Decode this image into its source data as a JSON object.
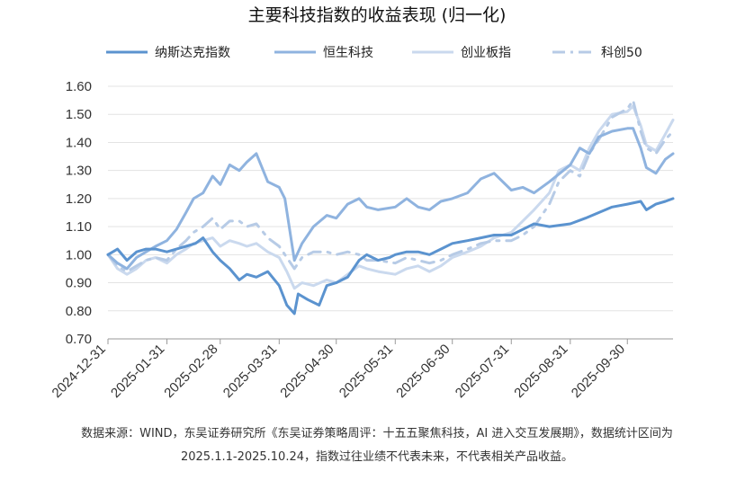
{
  "chart_data": {
    "type": "line",
    "title": "主要科技指数的收益表现 (归一化)",
    "xlabel": "",
    "ylabel": "",
    "ylim": [
      0.7,
      1.6
    ],
    "yticks": [
      "1.60",
      "1.50",
      "1.40",
      "1.30",
      "1.20",
      "1.10",
      "1.00",
      "0.90",
      "0.80",
      "0.70"
    ],
    "xticks": [
      "2024-12-31",
      "2025-01-31",
      "2025-02-28",
      "2025-03-31",
      "2025-04-30",
      "2025-05-31",
      "2025-06-30",
      "2025-07-31",
      "2025-08-31",
      "2025-09-30"
    ],
    "grid": "horizontal",
    "legend_position": "top",
    "series": [
      {
        "name": "纳斯达克指数",
        "color": "#5b93cf",
        "style": "solid",
        "values": [
          [
            "2024-12-31",
            1.0
          ],
          [
            "2025-01-05",
            1.02
          ],
          [
            "2025-01-10",
            0.98
          ],
          [
            "2025-01-15",
            1.01
          ],
          [
            "2025-01-20",
            1.02
          ],
          [
            "2025-01-25",
            1.02
          ],
          [
            "2025-01-31",
            1.01
          ],
          [
            "2025-02-05",
            1.02
          ],
          [
            "2025-02-10",
            1.03
          ],
          [
            "2025-02-15",
            1.04
          ],
          [
            "2025-02-19",
            1.06
          ],
          [
            "2025-02-24",
            1.01
          ],
          [
            "2025-02-28",
            0.98
          ],
          [
            "2025-03-05",
            0.95
          ],
          [
            "2025-03-10",
            0.91
          ],
          [
            "2025-03-14",
            0.93
          ],
          [
            "2025-03-19",
            0.92
          ],
          [
            "2025-03-25",
            0.94
          ],
          [
            "2025-03-31",
            0.89
          ],
          [
            "2025-04-04",
            0.82
          ],
          [
            "2025-04-08",
            0.79
          ],
          [
            "2025-04-10",
            0.86
          ],
          [
            "2025-04-15",
            0.84
          ],
          [
            "2025-04-21",
            0.82
          ],
          [
            "2025-04-25",
            0.89
          ],
          [
            "2025-04-30",
            0.9
          ],
          [
            "2025-05-06",
            0.92
          ],
          [
            "2025-05-12",
            0.98
          ],
          [
            "2025-05-16",
            1.0
          ],
          [
            "2025-05-22",
            0.98
          ],
          [
            "2025-05-28",
            0.99
          ],
          [
            "2025-05-31",
            1.0
          ],
          [
            "2025-06-06",
            1.01
          ],
          [
            "2025-06-12",
            1.01
          ],
          [
            "2025-06-18",
            1.0
          ],
          [
            "2025-06-24",
            1.02
          ],
          [
            "2025-06-30",
            1.04
          ],
          [
            "2025-07-08",
            1.05
          ],
          [
            "2025-07-15",
            1.06
          ],
          [
            "2025-07-22",
            1.07
          ],
          [
            "2025-07-31",
            1.07
          ],
          [
            "2025-08-06",
            1.09
          ],
          [
            "2025-08-12",
            1.11
          ],
          [
            "2025-08-20",
            1.1
          ],
          [
            "2025-08-31",
            1.11
          ],
          [
            "2025-09-08",
            1.13
          ],
          [
            "2025-09-15",
            1.15
          ],
          [
            "2025-09-22",
            1.17
          ],
          [
            "2025-09-30",
            1.18
          ],
          [
            "2025-10-07",
            1.19
          ],
          [
            "2025-10-10",
            1.16
          ],
          [
            "2025-10-15",
            1.18
          ],
          [
            "2025-10-20",
            1.19
          ],
          [
            "2025-10-24",
            1.2
          ]
        ]
      },
      {
        "name": "恒生科技",
        "color": "#8fb3df",
        "style": "solid",
        "values": [
          [
            "2024-12-31",
            1.0
          ],
          [
            "2025-01-05",
            0.97
          ],
          [
            "2025-01-10",
            0.95
          ],
          [
            "2025-01-15",
            0.99
          ],
          [
            "2025-01-20",
            1.01
          ],
          [
            "2025-01-25",
            1.03
          ],
          [
            "2025-01-31",
            1.05
          ],
          [
            "2025-02-05",
            1.09
          ],
          [
            "2025-02-10",
            1.15
          ],
          [
            "2025-02-14",
            1.2
          ],
          [
            "2025-02-19",
            1.22
          ],
          [
            "2025-02-24",
            1.28
          ],
          [
            "2025-02-28",
            1.25
          ],
          [
            "2025-03-05",
            1.32
          ],
          [
            "2025-03-10",
            1.3
          ],
          [
            "2025-03-14",
            1.33
          ],
          [
            "2025-03-19",
            1.36
          ],
          [
            "2025-03-25",
            1.26
          ],
          [
            "2025-03-31",
            1.24
          ],
          [
            "2025-04-03",
            1.2
          ],
          [
            "2025-04-08",
            0.98
          ],
          [
            "2025-04-12",
            1.04
          ],
          [
            "2025-04-18",
            1.1
          ],
          [
            "2025-04-25",
            1.14
          ],
          [
            "2025-04-30",
            1.13
          ],
          [
            "2025-05-06",
            1.18
          ],
          [
            "2025-05-12",
            1.2
          ],
          [
            "2025-05-16",
            1.17
          ],
          [
            "2025-05-22",
            1.16
          ],
          [
            "2025-05-31",
            1.17
          ],
          [
            "2025-06-06",
            1.2
          ],
          [
            "2025-06-12",
            1.17
          ],
          [
            "2025-06-18",
            1.16
          ],
          [
            "2025-06-24",
            1.19
          ],
          [
            "2025-06-30",
            1.2
          ],
          [
            "2025-07-08",
            1.22
          ],
          [
            "2025-07-15",
            1.27
          ],
          [
            "2025-07-22",
            1.29
          ],
          [
            "2025-07-31",
            1.23
          ],
          [
            "2025-08-06",
            1.24
          ],
          [
            "2025-08-12",
            1.22
          ],
          [
            "2025-08-20",
            1.26
          ],
          [
            "2025-08-31",
            1.32
          ],
          [
            "2025-09-05",
            1.38
          ],
          [
            "2025-09-10",
            1.36
          ],
          [
            "2025-09-15",
            1.42
          ],
          [
            "2025-09-22",
            1.44
          ],
          [
            "2025-09-30",
            1.45
          ],
          [
            "2025-10-03",
            1.45
          ],
          [
            "2025-10-07",
            1.38
          ],
          [
            "2025-10-10",
            1.31
          ],
          [
            "2025-10-15",
            1.29
          ],
          [
            "2025-10-20",
            1.34
          ],
          [
            "2025-10-24",
            1.36
          ]
        ]
      },
      {
        "name": "创业板指",
        "color": "#cad9ee",
        "style": "solid",
        "values": [
          [
            "2024-12-31",
            1.0
          ],
          [
            "2025-01-05",
            0.95
          ],
          [
            "2025-01-10",
            0.93
          ],
          [
            "2025-01-15",
            0.95
          ],
          [
            "2025-01-20",
            0.98
          ],
          [
            "2025-01-25",
            0.99
          ],
          [
            "2025-01-31",
            0.97
          ],
          [
            "2025-02-05",
            1.0
          ],
          [
            "2025-02-10",
            1.02
          ],
          [
            "2025-02-14",
            1.04
          ],
          [
            "2025-02-19",
            1.05
          ],
          [
            "2025-02-24",
            1.06
          ],
          [
            "2025-02-28",
            1.03
          ],
          [
            "2025-03-05",
            1.05
          ],
          [
            "2025-03-10",
            1.04
          ],
          [
            "2025-03-14",
            1.03
          ],
          [
            "2025-03-19",
            1.04
          ],
          [
            "2025-03-25",
            1.01
          ],
          [
            "2025-03-31",
            0.99
          ],
          [
            "2025-04-04",
            0.94
          ],
          [
            "2025-04-08",
            0.88
          ],
          [
            "2025-04-12",
            0.9
          ],
          [
            "2025-04-18",
            0.89
          ],
          [
            "2025-04-25",
            0.91
          ],
          [
            "2025-04-30",
            0.9
          ],
          [
            "2025-05-06",
            0.93
          ],
          [
            "2025-05-12",
            0.96
          ],
          [
            "2025-05-16",
            0.95
          ],
          [
            "2025-05-22",
            0.94
          ],
          [
            "2025-05-31",
            0.93
          ],
          [
            "2025-06-06",
            0.95
          ],
          [
            "2025-06-12",
            0.96
          ],
          [
            "2025-06-18",
            0.94
          ],
          [
            "2025-06-24",
            0.96
          ],
          [
            "2025-06-30",
            0.99
          ],
          [
            "2025-07-08",
            1.01
          ],
          [
            "2025-07-15",
            1.03
          ],
          [
            "2025-07-22",
            1.06
          ],
          [
            "2025-07-31",
            1.08
          ],
          [
            "2025-08-06",
            1.12
          ],
          [
            "2025-08-12",
            1.16
          ],
          [
            "2025-08-20",
            1.22
          ],
          [
            "2025-08-25",
            1.3
          ],
          [
            "2025-08-31",
            1.32
          ],
          [
            "2025-09-05",
            1.3
          ],
          [
            "2025-09-10",
            1.38
          ],
          [
            "2025-09-15",
            1.44
          ],
          [
            "2025-09-22",
            1.5
          ],
          [
            "2025-09-30",
            1.51
          ],
          [
            "2025-10-03",
            1.53
          ],
          [
            "2025-10-07",
            1.46
          ],
          [
            "2025-10-10",
            1.39
          ],
          [
            "2025-10-15",
            1.37
          ],
          [
            "2025-10-20",
            1.43
          ],
          [
            "2025-10-24",
            1.48
          ]
        ]
      },
      {
        "name": "科创50",
        "color": "#b7cbe6",
        "style": "dashdot",
        "values": [
          [
            "2024-12-31",
            1.0
          ],
          [
            "2025-01-05",
            0.96
          ],
          [
            "2025-01-10",
            0.94
          ],
          [
            "2025-01-15",
            0.96
          ],
          [
            "2025-01-20",
            0.98
          ],
          [
            "2025-01-25",
            0.99
          ],
          [
            "2025-01-31",
            0.98
          ],
          [
            "2025-02-05",
            1.02
          ],
          [
            "2025-02-10",
            1.05
          ],
          [
            "2025-02-14",
            1.08
          ],
          [
            "2025-02-19",
            1.1
          ],
          [
            "2025-02-24",
            1.13
          ],
          [
            "2025-02-28",
            1.09
          ],
          [
            "2025-03-05",
            1.12
          ],
          [
            "2025-03-10",
            1.12
          ],
          [
            "2025-03-14",
            1.1
          ],
          [
            "2025-03-19",
            1.11
          ],
          [
            "2025-03-25",
            1.06
          ],
          [
            "2025-03-31",
            1.03
          ],
          [
            "2025-04-04",
            0.99
          ],
          [
            "2025-04-08",
            0.95
          ],
          [
            "2025-04-12",
            0.99
          ],
          [
            "2025-04-18",
            1.01
          ],
          [
            "2025-04-25",
            1.01
          ],
          [
            "2025-04-30",
            1.0
          ],
          [
            "2025-05-06",
            1.01
          ],
          [
            "2025-05-12",
            1.0
          ],
          [
            "2025-05-16",
            0.98
          ],
          [
            "2025-05-22",
            0.98
          ],
          [
            "2025-05-31",
            0.97
          ],
          [
            "2025-06-06",
            0.99
          ],
          [
            "2025-06-12",
            0.98
          ],
          [
            "2025-06-18",
            0.97
          ],
          [
            "2025-06-24",
            0.98
          ],
          [
            "2025-06-30",
            1.0
          ],
          [
            "2025-07-08",
            1.02
          ],
          [
            "2025-07-15",
            1.04
          ],
          [
            "2025-07-22",
            1.05
          ],
          [
            "2025-07-31",
            1.05
          ],
          [
            "2025-08-06",
            1.07
          ],
          [
            "2025-08-12",
            1.1
          ],
          [
            "2025-08-20",
            1.18
          ],
          [
            "2025-08-25",
            1.26
          ],
          [
            "2025-08-31",
            1.3
          ],
          [
            "2025-09-05",
            1.28
          ],
          [
            "2025-09-10",
            1.36
          ],
          [
            "2025-09-15",
            1.41
          ],
          [
            "2025-09-22",
            1.49
          ],
          [
            "2025-09-30",
            1.52
          ],
          [
            "2025-10-03",
            1.55
          ],
          [
            "2025-10-07",
            1.44
          ],
          [
            "2025-10-10",
            1.38
          ],
          [
            "2025-10-15",
            1.36
          ],
          [
            "2025-10-20",
            1.41
          ],
          [
            "2025-10-24",
            1.44
          ]
        ]
      }
    ]
  },
  "source_note": {
    "line1": "数据来源：WIND，东吴证券研究所《东吴证券策略周评：十五五聚焦科技，AI 进入交互发展期》，数据统计区间为",
    "line2": "2025.1.1-2025.10.24，指数过往业绩不代表未来，不代表相关产品收益。"
  }
}
